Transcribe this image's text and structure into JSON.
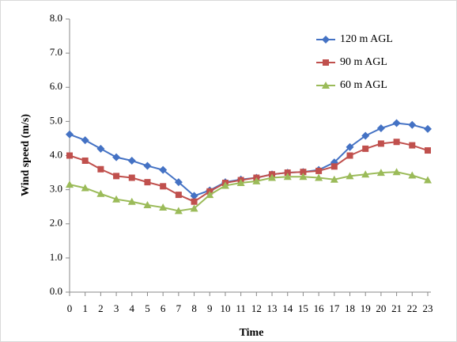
{
  "chart_data": {
    "type": "line",
    "x_label": "Time",
    "y_label": "Wind speed (m/s)",
    "categories": [
      "0",
      "1",
      "2",
      "3",
      "4",
      "5",
      "6",
      "7",
      "8",
      "9",
      "10",
      "11",
      "12",
      "13",
      "14",
      "15",
      "16",
      "17",
      "18",
      "19",
      "20",
      "21",
      "22",
      "23"
    ],
    "series": [
      {
        "name": "120 m  AGL",
        "color": "#4472c4",
        "marker": "diamond",
        "values": [
          4.62,
          4.45,
          4.2,
          3.95,
          3.85,
          3.7,
          3.58,
          3.22,
          2.82,
          2.98,
          3.22,
          3.3,
          3.35,
          3.45,
          3.5,
          3.52,
          3.58,
          3.8,
          4.25,
          4.58,
          4.8,
          4.95,
          4.9,
          4.78
        ]
      },
      {
        "name": "90 m AGL",
        "color": "#c0504d",
        "marker": "square",
        "values": [
          4.0,
          3.85,
          3.6,
          3.4,
          3.35,
          3.22,
          3.1,
          2.85,
          2.65,
          2.95,
          3.2,
          3.28,
          3.35,
          3.45,
          3.5,
          3.52,
          3.55,
          3.68,
          4.0,
          4.2,
          4.35,
          4.4,
          4.3,
          4.15
        ]
      },
      {
        "name": "60 m AGL",
        "color": "#9bbb59",
        "marker": "triangle",
        "values": [
          3.15,
          3.05,
          2.88,
          2.72,
          2.65,
          2.55,
          2.48,
          2.38,
          2.45,
          2.85,
          3.12,
          3.2,
          3.25,
          3.35,
          3.38,
          3.38,
          3.35,
          3.3,
          3.4,
          3.45,
          3.5,
          3.52,
          3.42,
          3.28
        ]
      }
    ],
    "ylim": [
      0,
      8
    ],
    "yticks": [
      {
        "value": 0,
        "label": "0.0"
      },
      {
        "value": 1,
        "label": "1.0"
      },
      {
        "value": 2,
        "label": "2.0"
      },
      {
        "value": 3,
        "label": "3.0"
      },
      {
        "value": 4,
        "label": "4.0"
      },
      {
        "value": 5,
        "label": "5.0"
      },
      {
        "value": 6,
        "label": "6.0"
      },
      {
        "value": 7,
        "label": "7.0"
      },
      {
        "value": 8,
        "label": "8.0"
      }
    ],
    "grid": false,
    "legend": "top-right"
  }
}
